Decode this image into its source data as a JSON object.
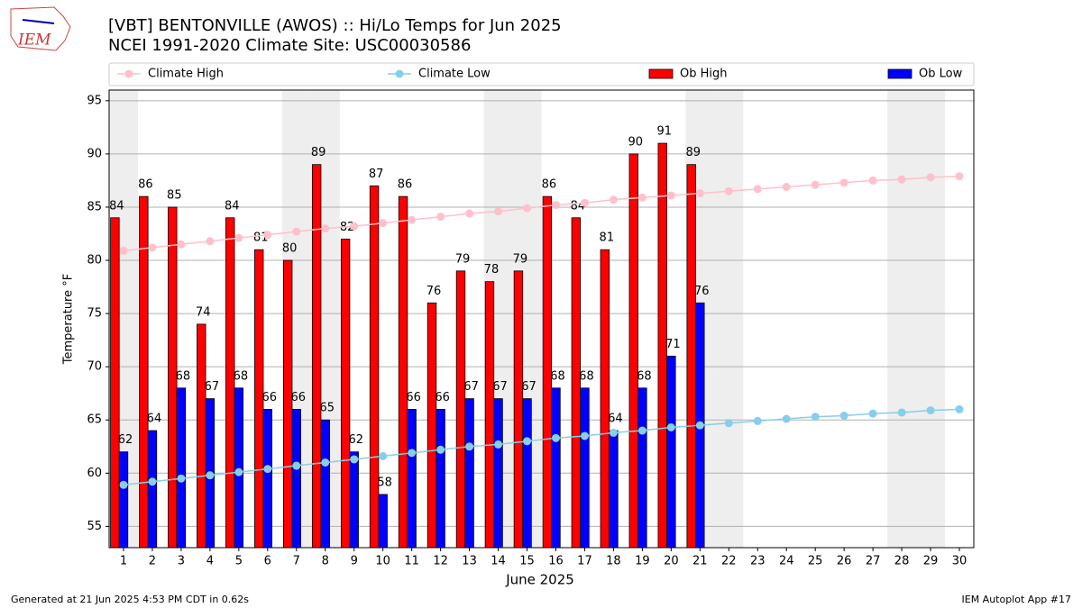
{
  "chart_data": {
    "type": "bar_line",
    "title": "[VBT] BENTONVILLE (AWOS) :: Hi/Lo Temps for Jun 2025",
    "subtitle": "NCEI 1991-2020 Climate Site: USC00030586",
    "ylabel": "Temperature $^\\circ$F",
    "ylabel_text": "Temperature °F",
    "xlabel": "June 2025",
    "footer_left": "Generated at 21 Jun 2025 4:53 PM CDT in 0.62s",
    "footer_right": "IEM Autoplot App #17",
    "logo": "IEM",
    "x": [
      1,
      2,
      3,
      4,
      5,
      6,
      7,
      8,
      9,
      10,
      11,
      12,
      13,
      14,
      15,
      16,
      17,
      18,
      19,
      20,
      21,
      22,
      23,
      24,
      25,
      26,
      27,
      28,
      29,
      30
    ],
    "xlim": [
      0.5,
      30.5
    ],
    "xticks": [
      1,
      2,
      3,
      4,
      5,
      6,
      7,
      8,
      9,
      10,
      11,
      12,
      13,
      14,
      15,
      16,
      17,
      18,
      19,
      20,
      21,
      22,
      23,
      24,
      25,
      26,
      27,
      28,
      29,
      30
    ],
    "ylim": [
      53,
      96
    ],
    "yticks": [
      55,
      60,
      65,
      70,
      75,
      80,
      85,
      90,
      95
    ],
    "grid": true,
    "weekend_days": [
      1,
      7,
      8,
      14,
      15,
      21,
      22,
      28,
      29
    ],
    "series": [
      {
        "name": "Climate High",
        "color": "#ffc0cb",
        "kind": "line",
        "values": [
          80.9,
          81.2,
          81.5,
          81.8,
          82.1,
          82.4,
          82.7,
          83.0,
          83.2,
          83.5,
          83.8,
          84.1,
          84.4,
          84.6,
          84.9,
          85.2,
          85.4,
          85.7,
          85.9,
          86.1,
          86.3,
          86.5,
          86.7,
          86.9,
          87.1,
          87.3,
          87.5,
          87.6,
          87.8,
          87.9
        ]
      },
      {
        "name": "Climate Low",
        "color": "#87ceeb",
        "kind": "line",
        "values": [
          58.9,
          59.2,
          59.5,
          59.8,
          60.1,
          60.4,
          60.7,
          61.0,
          61.3,
          61.6,
          61.9,
          62.2,
          62.5,
          62.7,
          63.0,
          63.3,
          63.5,
          63.8,
          64.0,
          64.3,
          64.5,
          64.7,
          64.9,
          65.1,
          65.3,
          65.4,
          65.6,
          65.7,
          65.9,
          66.0
        ]
      },
      {
        "name": "Ob High",
        "color": "#ff0000",
        "kind": "bar",
        "values": [
          84,
          86,
          85,
          74,
          84,
          81,
          80,
          89,
          82,
          87,
          86,
          76,
          79,
          78,
          79,
          86,
          84,
          81,
          90,
          91,
          89,
          null,
          null,
          null,
          null,
          null,
          null,
          null,
          null,
          null
        ]
      },
      {
        "name": "Ob Low",
        "color": "#0000ff",
        "kind": "bar",
        "values": [
          62,
          64,
          68,
          67,
          68,
          66,
          66,
          65,
          62,
          58,
          66,
          66,
          67,
          67,
          67,
          68,
          68,
          64,
          68,
          71,
          76,
          null,
          null,
          null,
          null,
          null,
          null,
          null,
          null,
          null
        ]
      }
    ]
  }
}
